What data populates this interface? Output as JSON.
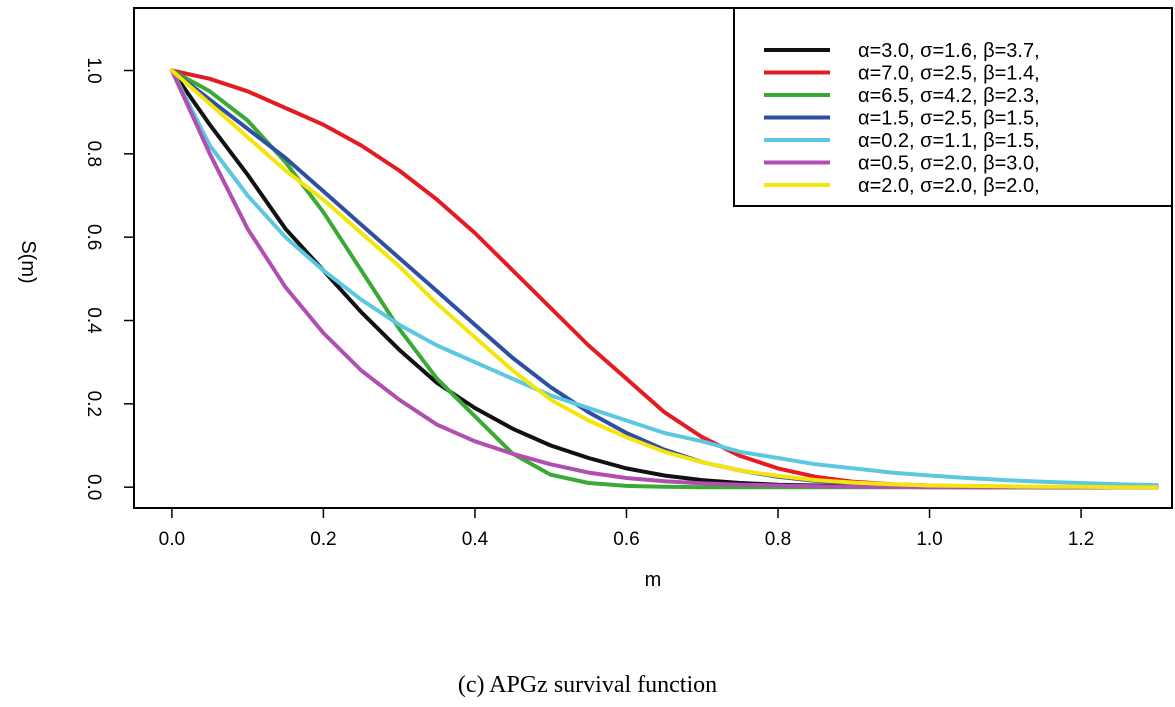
{
  "caption": "(c) APGz survival function",
  "chart_data": {
    "type": "line",
    "title": "",
    "xlabel": "m",
    "ylabel": "S(m)",
    "xlim": [
      -0.05,
      1.32
    ],
    "ylim": [
      -0.05,
      1.15
    ],
    "xticks": [
      "0.0",
      "0.2",
      "0.4",
      "0.6",
      "0.8",
      "1.0",
      "1.2"
    ],
    "yticks": [
      "0.0",
      "0.2",
      "0.4",
      "0.6",
      "0.8",
      "1.0"
    ],
    "grid": false,
    "legend_position": "top-right",
    "x": [
      0.0,
      0.05,
      0.1,
      0.15,
      0.2,
      0.25,
      0.3,
      0.35,
      0.4,
      0.45,
      0.5,
      0.55,
      0.6,
      0.65,
      0.7,
      0.75,
      0.8,
      0.85,
      0.9,
      0.95,
      1.0,
      1.05,
      1.1,
      1.15,
      1.2,
      1.25,
      1.3
    ],
    "series": [
      {
        "name": "α=3.0, σ=1.6, β=3.7,",
        "color": "#111111",
        "values": [
          1.0,
          0.87,
          0.75,
          0.62,
          0.52,
          0.42,
          0.33,
          0.25,
          0.19,
          0.14,
          0.1,
          0.07,
          0.045,
          0.028,
          0.017,
          0.01,
          0.006,
          0.004,
          0.002,
          0.001,
          0.001,
          0.0,
          0.0,
          0.0,
          0.0,
          0.0,
          0.0
        ]
      },
      {
        "name": "α=7.0, σ=2.5, β=1.4,",
        "color": "#e51b23",
        "values": [
          1.0,
          0.98,
          0.95,
          0.91,
          0.87,
          0.82,
          0.76,
          0.69,
          0.61,
          0.52,
          0.43,
          0.34,
          0.26,
          0.18,
          0.12,
          0.075,
          0.045,
          0.025,
          0.013,
          0.007,
          0.004,
          0.002,
          0.001,
          0.0,
          0.0,
          0.0,
          0.0
        ]
      },
      {
        "name": "α=6.5, σ=4.2, β=2.3,",
        "color": "#3aaa35",
        "values": [
          1.0,
          0.95,
          0.88,
          0.78,
          0.66,
          0.52,
          0.38,
          0.26,
          0.17,
          0.08,
          0.03,
          0.01,
          0.003,
          0.001,
          0.0,
          0.0,
          0.0,
          0.0,
          0.0,
          0.0,
          0.0,
          0.0,
          0.0,
          0.0,
          0.0,
          0.0,
          0.0
        ]
      },
      {
        "name": "α=1.5, σ=2.5, β=1.5,",
        "color": "#2e4fa3",
        "values": [
          1.0,
          0.93,
          0.86,
          0.79,
          0.71,
          0.63,
          0.55,
          0.47,
          0.39,
          0.31,
          0.24,
          0.18,
          0.13,
          0.09,
          0.06,
          0.04,
          0.025,
          0.015,
          0.009,
          0.005,
          0.003,
          0.002,
          0.001,
          0.0,
          0.0,
          0.0,
          0.0
        ]
      },
      {
        "name": "α=0.2, σ=1.1, β=1.5,",
        "color": "#5cc8e0",
        "values": [
          1.0,
          0.82,
          0.7,
          0.6,
          0.52,
          0.45,
          0.39,
          0.34,
          0.3,
          0.26,
          0.22,
          0.19,
          0.16,
          0.13,
          0.11,
          0.085,
          0.07,
          0.055,
          0.045,
          0.035,
          0.028,
          0.022,
          0.017,
          0.013,
          0.01,
          0.007,
          0.005
        ]
      },
      {
        "name": "α=0.5, σ=2.0, β=3.0,",
        "color": "#b04fb0",
        "values": [
          1.0,
          0.8,
          0.62,
          0.48,
          0.37,
          0.28,
          0.21,
          0.15,
          0.11,
          0.08,
          0.055,
          0.035,
          0.022,
          0.014,
          0.009,
          0.006,
          0.004,
          0.002,
          0.001,
          0.001,
          0.0,
          0.0,
          0.0,
          0.0,
          0.0,
          0.0,
          0.0
        ]
      },
      {
        "name": "α=2.0, σ=2.0, β=2.0,",
        "color": "#f5e50f",
        "values": [
          1.0,
          0.92,
          0.84,
          0.76,
          0.69,
          0.61,
          0.53,
          0.44,
          0.36,
          0.28,
          0.21,
          0.16,
          0.12,
          0.085,
          0.06,
          0.04,
          0.027,
          0.017,
          0.011,
          0.007,
          0.004,
          0.003,
          0.002,
          0.001,
          0.001,
          0.0,
          0.0
        ]
      }
    ]
  }
}
